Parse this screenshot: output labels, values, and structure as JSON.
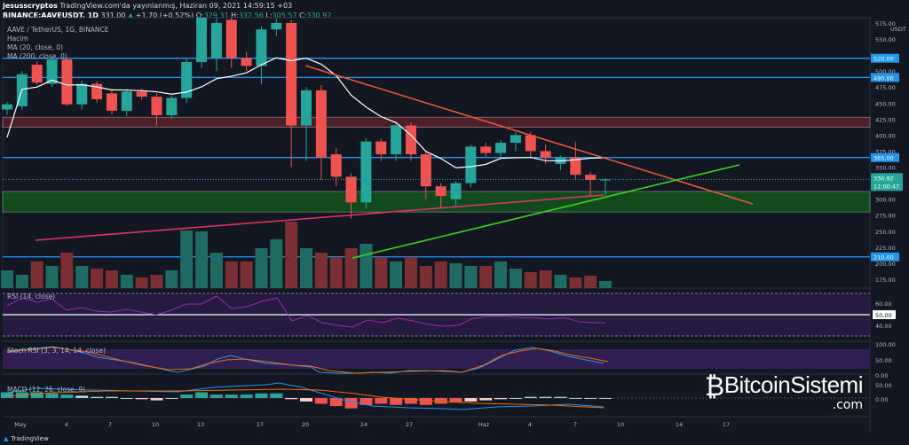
{
  "header": {
    "author": "jesusscryptos",
    "published": "TradingView.com'da yayınlanmış, Haziran 09, 2021 14:59:15 +03",
    "symbol": "BINANCE:AAVEUSDT, 1D",
    "last": "331.00",
    "change": "+1.70 (+0.52%)",
    "o_label": "O:",
    "o": "329.31",
    "h_label": "H:",
    "h": "332.56",
    "l_label": "L:",
    "l": "305.57",
    "c_label": "C:",
    "c": "330.92"
  },
  "legend": {
    "title": "AAVE / TetherUS, 1G, BINANCE",
    "volume": "Hacim",
    "ma20": "MA (20, close, 0)",
    "ma200": "MA (200, close, 0)"
  },
  "indicators": {
    "rsi": "RSI (14, close)",
    "stoch": "Stoch RSI (3, 3, 14, 14, close)",
    "macd": "MACD (12, 26, close, 9)"
  },
  "price_axis": {
    "currency": "USDT",
    "ticks": [
      "575.00",
      "550.00",
      "500.00",
      "475.00",
      "450.00",
      "425.00",
      "400.00",
      "375.00",
      "350.00",
      "300.00",
      "275.00",
      "250.00",
      "225.00",
      "200.00",
      "175.00"
    ],
    "levels": [
      "520.00",
      "490.00",
      "365.00",
      "210.00"
    ],
    "last_price": "330.92",
    "countdown": "12:00:47"
  },
  "rsi_axis": [
    "60.00",
    "50.00",
    "40.00"
  ],
  "stoch_axis": [
    "100.00",
    "50.00",
    "0.00"
  ],
  "macd_axis": [
    "50.00",
    "0.00"
  ],
  "date_axis": [
    "May",
    "4",
    "7",
    "10",
    "13",
    "17",
    "20",
    "24",
    "27",
    "Haz",
    "4",
    "7",
    "10",
    "14",
    "17"
  ],
  "footer": {
    "brand": "TradingView"
  },
  "watermark": {
    "text": "BitcoinSistemi",
    ".com": ".com",
    "suffix": ".com"
  },
  "colors": {
    "up": "#26a69a",
    "down": "#ef5350",
    "level": "#2196f3",
    "background": "#131722"
  },
  "chart_data": {
    "type": "candlestick",
    "title": "AAVE / TetherUS, 1G, BINANCE",
    "ylim": [
      165,
      585
    ],
    "candles": [
      [
        440,
        452,
        432,
        448
      ],
      [
        445,
        500,
        440,
        495
      ],
      [
        510,
        515,
        478,
        482
      ],
      [
        480,
        522,
        475,
        518
      ],
      [
        518,
        520,
        445,
        448
      ],
      [
        448,
        485,
        440,
        480
      ],
      [
        480,
        484,
        450,
        456
      ],
      [
        465,
        470,
        432,
        438
      ],
      [
        438,
        472,
        430,
        468
      ],
      [
        468,
        472,
        455,
        460
      ],
      [
        460,
        465,
        415,
        431
      ],
      [
        431,
        462,
        425,
        458
      ],
      [
        458,
        520,
        450,
        514
      ],
      [
        514,
        610,
        505,
        600
      ],
      [
        520,
        590,
        500,
        575
      ],
      [
        580,
        600,
        505,
        520
      ],
      [
        520,
        530,
        500,
        508
      ],
      [
        508,
        570,
        480,
        565
      ],
      [
        565,
        582,
        555,
        575
      ],
      [
        575,
        580,
        350,
        415
      ],
      [
        415,
        475,
        360,
        470
      ],
      [
        470,
        478,
        330,
        365
      ],
      [
        370,
        380,
        320,
        335
      ],
      [
        335,
        340,
        270,
        295
      ],
      [
        295,
        395,
        285,
        390
      ],
      [
        390,
        395,
        360,
        370
      ],
      [
        370,
        418,
        360,
        415
      ],
      [
        415,
        420,
        360,
        370
      ],
      [
        370,
        375,
        300,
        320
      ],
      [
        320,
        325,
        285,
        305
      ],
      [
        300,
        328,
        290,
        325
      ],
      [
        325,
        385,
        318,
        382
      ],
      [
        382,
        388,
        365,
        372
      ],
      [
        372,
        392,
        365,
        388
      ],
      [
        388,
        405,
        375,
        400
      ],
      [
        400,
        405,
        365,
        375
      ],
      [
        375,
        385,
        355,
        365
      ],
      [
        355,
        368,
        345,
        365
      ],
      [
        365,
        390,
        330,
        338
      ],
      [
        338,
        342,
        305,
        330
      ],
      [
        329.31,
        332.56,
        305.57,
        330.92
      ]
    ],
    "volume": [
      20,
      15,
      30,
      25,
      40,
      25,
      22,
      20,
      15,
      12,
      15,
      20,
      65,
      64,
      40,
      30,
      30,
      45,
      55,
      75,
      45,
      40,
      35,
      45,
      50,
      35,
      30,
      35,
      25,
      30,
      28,
      25,
      25,
      30,
      22,
      18,
      20,
      15,
      12,
      14,
      8
    ],
    "horizontal_levels": [
      520,
      490,
      365,
      210
    ],
    "zones": [
      {
        "from": 412,
        "to": 428,
        "color": "red"
      },
      {
        "from": 280,
        "to": 312,
        "color": "green"
      }
    ]
  }
}
